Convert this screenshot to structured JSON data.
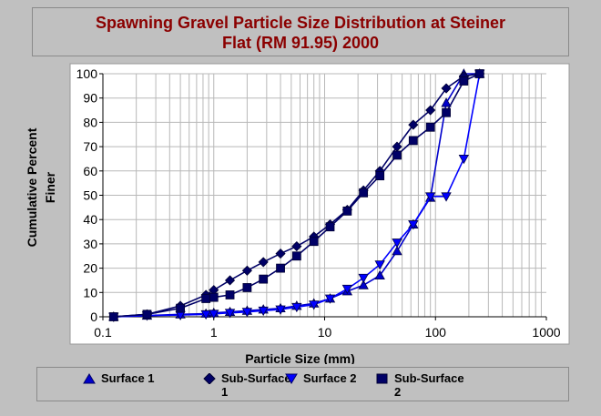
{
  "chart_data": {
    "type": "line",
    "title": "Spawning Gravel Particle Size Distribution at Steiner Flat (RM 91.95) 2000",
    "title_lines": [
      "Spawning Gravel Particle Size Distribution at Steiner",
      "Flat (RM 91.95) 2000"
    ],
    "xlabel": "Particle Size (mm)",
    "ylabel": "Cumulative Percent Finer",
    "ylabel_lines": [
      "Cumulative Percent",
      "Finer"
    ],
    "xscale": "log",
    "xlim": [
      0.1,
      1000
    ],
    "ylim": [
      0,
      100
    ],
    "x_ticks": [
      "0.1",
      "1",
      "10",
      "100",
      "1000"
    ],
    "y_ticks": [
      "0",
      "10",
      "20",
      "30",
      "40",
      "50",
      "60",
      "70",
      "80",
      "90",
      "100"
    ],
    "grid": true,
    "legend_position": "bottom",
    "series": [
      {
        "name": "Surface 1",
        "marker": "triangle-up",
        "color": "#0000cc",
        "x": [
          0.125,
          0.25,
          0.5,
          0.85,
          1,
          1.4,
          2,
          2.8,
          4,
          5.6,
          8,
          11.2,
          16,
          22.4,
          31.5,
          45,
          63,
          90,
          125,
          180,
          250
        ],
        "y": [
          0,
          0.5,
          1,
          1.3,
          1.6,
          2,
          2.5,
          3,
          3.5,
          4.5,
          5.5,
          7.5,
          10.5,
          13,
          17,
          27,
          38,
          49,
          88,
          100,
          100
        ]
      },
      {
        "name": "Sub-Surface 1",
        "marker": "diamond",
        "color": "#000066",
        "x": [
          0.125,
          0.25,
          0.5,
          0.85,
          1,
          1.4,
          2,
          2.8,
          4,
          5.6,
          8,
          11.2,
          16,
          22.4,
          31.5,
          45,
          63,
          90,
          125,
          180,
          250
        ],
        "y": [
          0,
          1,
          4.5,
          9,
          11,
          15,
          19,
          22.5,
          26,
          29,
          33,
          38,
          44,
          52,
          60,
          70,
          79,
          85,
          94,
          99,
          100
        ]
      },
      {
        "name": "Surface 2",
        "marker": "triangle-down",
        "color": "#0000ff",
        "x": [
          0.125,
          0.25,
          0.5,
          0.85,
          1,
          1.4,
          2,
          2.8,
          4,
          5.6,
          8,
          11.2,
          16,
          22.4,
          31.5,
          45,
          63,
          90,
          125,
          180,
          250
        ],
        "y": [
          0,
          0.5,
          0.7,
          1,
          1.2,
          1.6,
          2,
          2.5,
          3,
          4,
          5,
          7.5,
          11.5,
          16,
          21.5,
          30.5,
          38,
          49.5,
          49.5,
          65,
          100
        ]
      },
      {
        "name": "Sub-Surface 2",
        "marker": "square",
        "color": "#000066",
        "x": [
          0.125,
          0.25,
          0.5,
          0.85,
          1,
          1.4,
          2,
          2.8,
          4,
          5.6,
          8,
          11.2,
          16,
          22.4,
          31.5,
          45,
          63,
          90,
          125,
          180,
          250
        ],
        "y": [
          0,
          1,
          3.5,
          7.5,
          8,
          9,
          12,
          15.5,
          20,
          25,
          31,
          37,
          43.5,
          51,
          58,
          66.5,
          72.5,
          78,
          84,
          97,
          100
        ]
      }
    ]
  },
  "legend": [
    {
      "line1": "Surface 1",
      "line2": ""
    },
    {
      "line1": "Sub-Surface",
      "line2": "1"
    },
    {
      "line1": "Surface 2",
      "line2": ""
    },
    {
      "line1": "Sub-Surface",
      "line2": "2"
    }
  ]
}
